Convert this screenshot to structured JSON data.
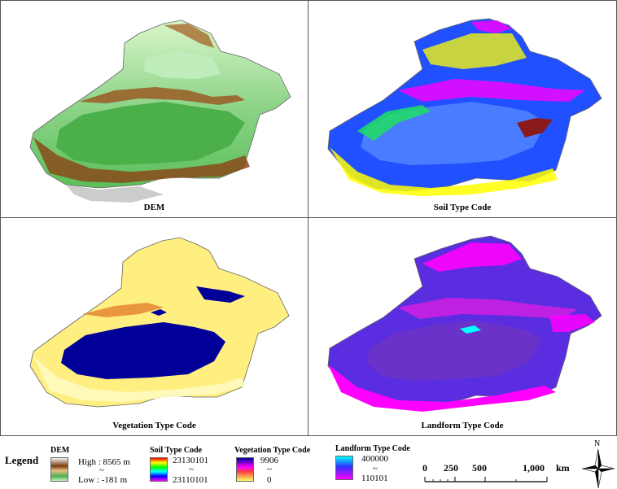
{
  "panels": [
    {
      "id": "dem",
      "caption": "DEM"
    },
    {
      "id": "soil",
      "caption": "Soil Type Code"
    },
    {
      "id": "veg",
      "caption": "Vegetation Type Code"
    },
    {
      "id": "land",
      "caption": "Landform Type Code"
    }
  ],
  "legend": {
    "title": "Legend",
    "dem": {
      "heading": "DEM",
      "high": "High : 8565 m",
      "tilde": "~",
      "low": "Low : -181 m"
    },
    "soil": {
      "heading": "Soil Type Code",
      "high": "23130101",
      "tilde": "~",
      "low": "23110101"
    },
    "veg": {
      "heading": "Vegetation Type Code",
      "high": "9906",
      "tilde": "~",
      "low": "0"
    },
    "land": {
      "heading": "Landform Type Code",
      "high": "400000",
      "tilde": "~",
      "low": "110101"
    }
  },
  "scalebar": {
    "labels": [
      "0",
      "250",
      "500",
      "1,000"
    ],
    "unit": "km"
  },
  "north_arrow": {
    "label": "N"
  },
  "colors": {
    "dem_ramp": [
      "#f2f2f2",
      "#7a3b12",
      "#e8c280",
      "#4caf50",
      "#c8f5c0"
    ],
    "soil_ramp": [
      "#ff0000",
      "#ffff00",
      "#00ff00",
      "#00ffff",
      "#0000ff",
      "#ff00ff"
    ],
    "veg_ramp": [
      "#0000a0",
      "#ff00ff",
      "#ff4040",
      "#ffff66"
    ],
    "land_ramp": [
      "#00ffff",
      "#3030ff",
      "#ff00ff"
    ]
  }
}
